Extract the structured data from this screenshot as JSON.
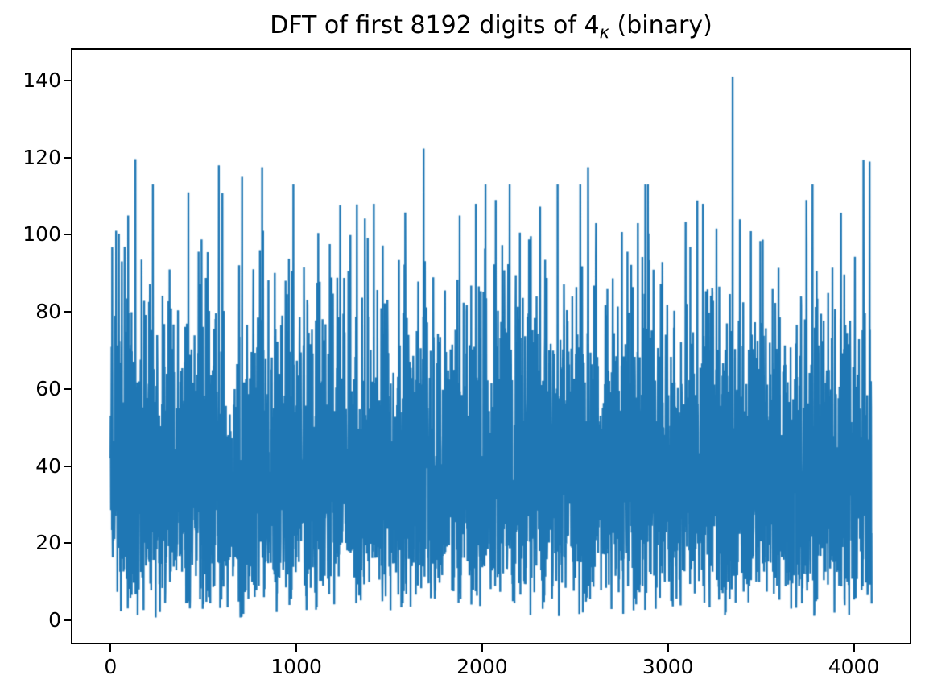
{
  "figure": {
    "background_color": "#ffffff",
    "axes_edge_color": "#000000"
  },
  "chart_data": {
    "type": "line",
    "title": "DFT of first 8192 digits of 4κ (binary)",
    "title_parts": {
      "pre": "DFT of first 8192 digits of 4",
      "sub": "κ",
      "post": " (binary)"
    },
    "line_color": "#1f77b4",
    "grid": false,
    "legend": "none",
    "x_start": 0,
    "x_end": 4096,
    "n_points": 4097,
    "xlim": [
      -204.8,
      4300.8
    ],
    "ylim": [
      -5.8,
      147.9
    ],
    "xticks": [
      0,
      1000,
      2000,
      3000,
      4000
    ],
    "yticks": [
      0,
      20,
      40,
      60,
      80,
      100,
      120,
      140
    ],
    "generator": {
      "distribution": "rayleigh",
      "sigma": 31,
      "seed": 20130907,
      "min_value": 0.8,
      "random_clip": 113
    },
    "notable_peaks": [
      [
        9,
        96.8
      ],
      [
        30,
        101
      ],
      [
        95,
        105
      ],
      [
        134,
        119.6
      ],
      [
        419,
        111
      ],
      [
        583,
        118
      ],
      [
        708,
        115
      ],
      [
        816,
        117.5
      ],
      [
        1417,
        108
      ],
      [
        1685,
        122.3
      ],
      [
        1879,
        105
      ],
      [
        1966,
        108
      ],
      [
        2073,
        109
      ],
      [
        2406,
        113
      ],
      [
        2570,
        117.5
      ],
      [
        2613,
        103
      ],
      [
        2752,
        100.7
      ],
      [
        2838,
        103
      ],
      [
        3188,
        108
      ],
      [
        3261,
        101.6
      ],
      [
        3348,
        141
      ],
      [
        3387,
        104
      ],
      [
        3745,
        109
      ],
      [
        3931,
        105.7
      ],
      [
        4052,
        119.4
      ],
      [
        4085,
        119
      ]
    ],
    "observed_stats": {
      "max_value": 141,
      "max_at_x": 3348,
      "min_value": 1,
      "dense_band": [
        15,
        65
      ],
      "typical_median": 40
    }
  }
}
